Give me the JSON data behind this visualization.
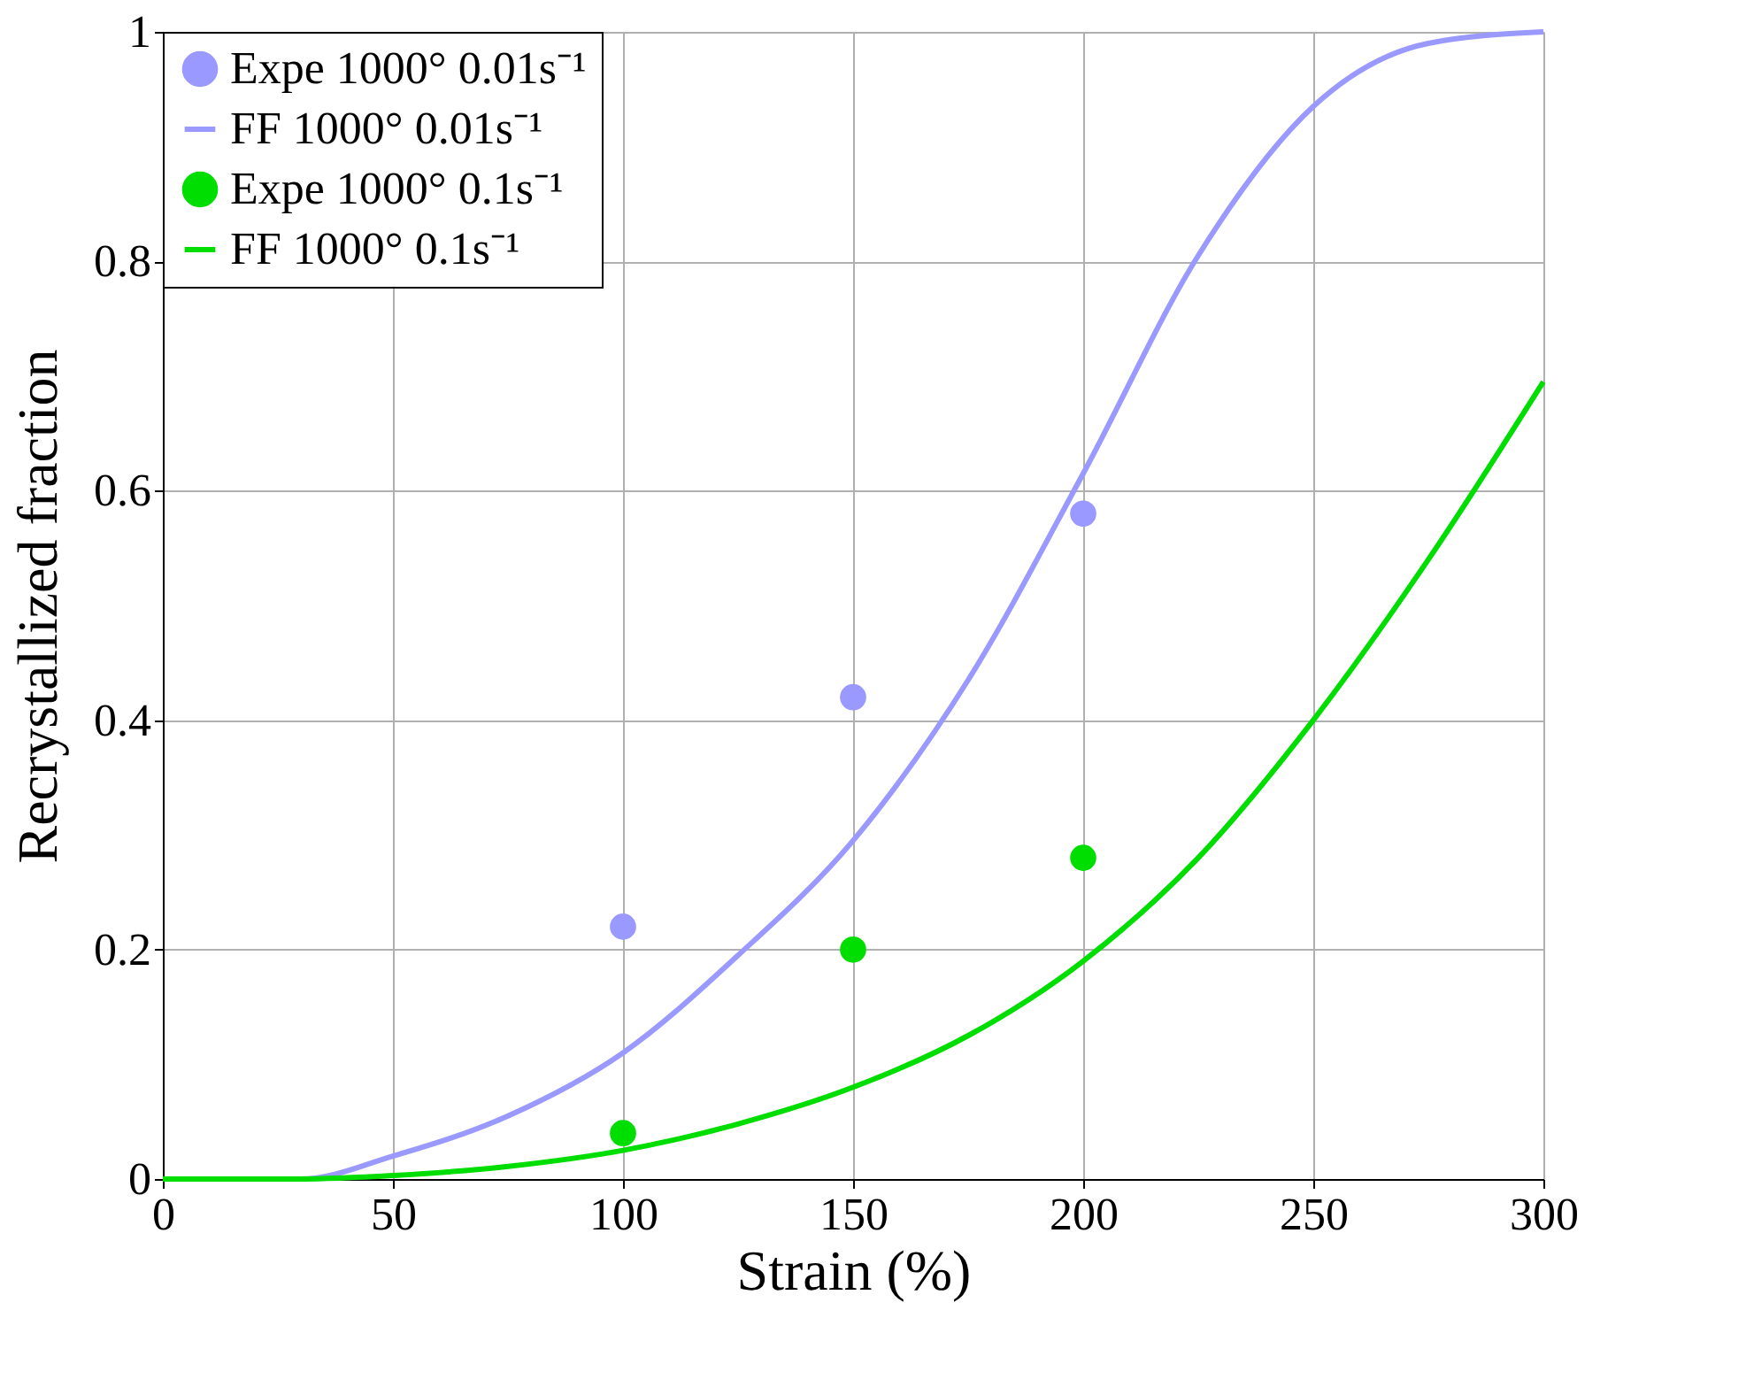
{
  "chart_data": {
    "type": "line",
    "xlabel": "Strain (%)",
    "ylabel": "Recrystallized fraction",
    "xlim": [
      0,
      300
    ],
    "ylim": [
      0,
      1
    ],
    "xticks": [
      0,
      50,
      100,
      150,
      200,
      250,
      300
    ],
    "yticks": [
      0,
      0.2,
      0.4,
      0.6,
      0.8,
      1
    ],
    "grid": true,
    "legend": "top left",
    "series": [
      {
        "name": "Expe 1000° 0.01s⁻¹",
        "type": "scatter",
        "marker": "circle",
        "color": "#9999ff",
        "x": [
          100,
          150,
          200
        ],
        "values": [
          0.22,
          0.42,
          0.58
        ]
      },
      {
        "name": "FF 1000° 0.01s⁻¹",
        "color": "#9999ff",
        "x": [
          0,
          30,
          50,
          75,
          100,
          125,
          150,
          175,
          200,
          225,
          250,
          275,
          300
        ],
        "values": [
          0,
          0,
          0.02,
          0.055,
          0.11,
          0.195,
          0.295,
          0.435,
          0.615,
          0.805,
          0.935,
          0.99,
          1.0
        ]
      },
      {
        "name": "Expe 1000° 0.1s⁻¹",
        "type": "scatter",
        "marker": "circle",
        "color": "#00dd00",
        "x": [
          100,
          150,
          200
        ],
        "values": [
          0.04,
          0.2,
          0.28
        ]
      },
      {
        "name": "FF 1000° 0.1s⁻¹",
        "color": "#00dd00",
        "x": [
          0,
          30,
          50,
          75,
          100,
          125,
          150,
          175,
          200,
          225,
          250,
          275,
          300
        ],
        "values": [
          0,
          0,
          0.003,
          0.011,
          0.025,
          0.048,
          0.08,
          0.125,
          0.19,
          0.28,
          0.4,
          0.54,
          0.695
        ]
      }
    ]
  }
}
